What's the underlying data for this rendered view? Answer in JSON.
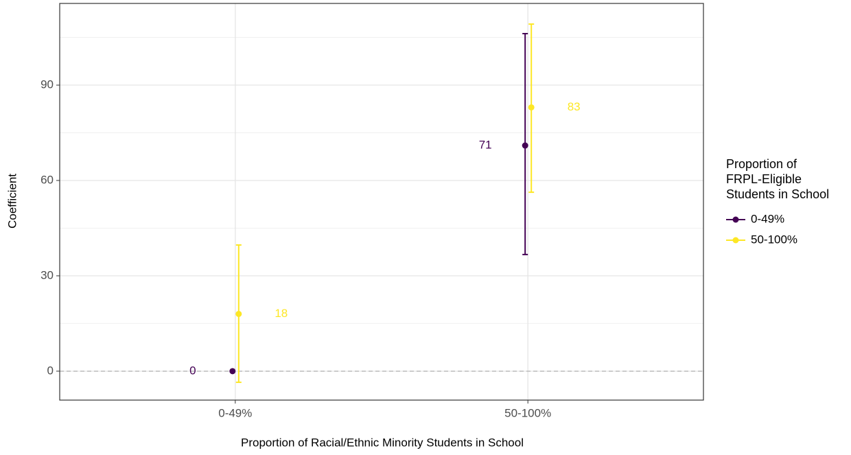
{
  "chart_data": {
    "type": "errorbar",
    "x_label": "Proportion of Racial/Ethnic Minority Students in School",
    "y_label": "Coefficient",
    "categories": [
      "0-49%",
      "50-100%"
    ],
    "legend_title": [
      "Proportion of",
      "FRPL-Eligible",
      "Students in School"
    ],
    "series": [
      {
        "name": "0-49%",
        "color": "#440154",
        "values": [
          0,
          71
        ],
        "low": [
          null,
          36.7
        ],
        "high": [
          null,
          106.2
        ]
      },
      {
        "name": "50-100%",
        "color": "#FDE725",
        "values": [
          18,
          83
        ],
        "low": [
          -3.5,
          56.3
        ],
        "high": [
          39.7,
          109.2
        ]
      }
    ],
    "ylim": [
      -9.1,
      115.7
    ],
    "yticks": [
      0,
      30,
      60,
      90
    ],
    "y_minor_grid": [
      15,
      45,
      75,
      105
    ],
    "hline": 0,
    "grid": true,
    "legend": "right"
  }
}
